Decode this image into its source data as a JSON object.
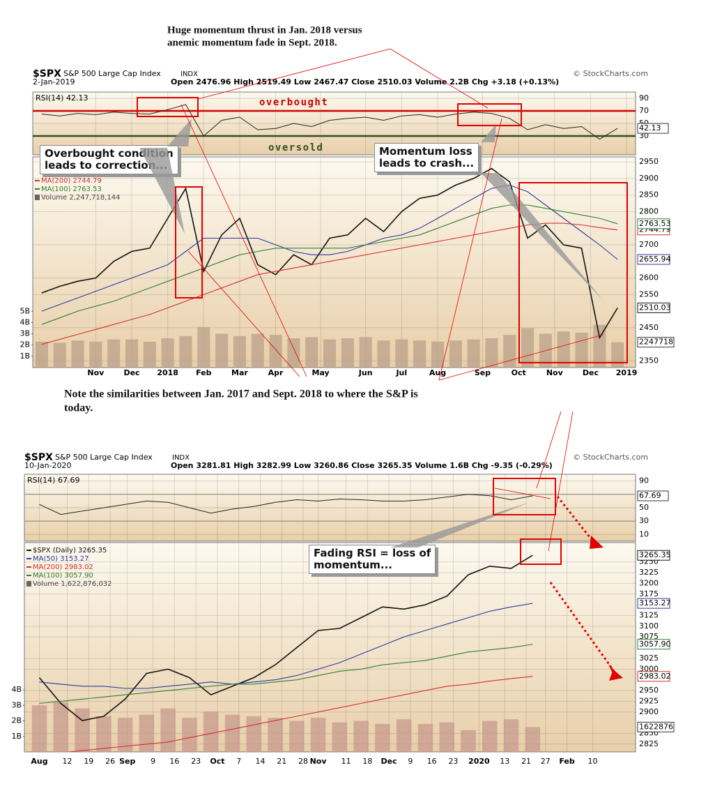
{
  "headline": [
    "Huge momentum thrust in Jan. 2018 versus",
    "anemic momentum fade in Sept. 2018."
  ],
  "note": [
    "Note the similarities between Jan. 2017 and Sept. 2018 to where the S&P is",
    "today."
  ],
  "zone_labels": [
    "overbought",
    "oversold"
  ],
  "callouts": [
    [
      "Overbought condition",
      "leads to correction..."
    ],
    [
      "Momentum loss",
      "leads to crash..."
    ],
    [
      "Fading RSI = loss of",
      "momentum..."
    ]
  ],
  "chart_data": [
    {
      "type": "stock",
      "symbol": "$SPX",
      "name": "S&P 500 Large Cap Index",
      "exchange": "INDX",
      "source": "© StockCharts.com",
      "date": "2-Jan-2019",
      "quote": "Open 2476.96 High 2519.49 Low 2467.47 Close 2510.03 Volume 2.2B Chg +3.18 (+0.13%)",
      "xlim": [
        -0.5,
        33
      ],
      "xticks": [
        {
          "value": 3,
          "label": "Nov"
        },
        {
          "value": 5,
          "label": "Dec"
        },
        {
          "value": 7,
          "label": "2018"
        },
        {
          "value": 9,
          "label": "Feb"
        },
        {
          "value": 11,
          "label": "Mar"
        },
        {
          "value": 13,
          "label": "Apr"
        },
        {
          "value": 15.5,
          "label": "May"
        },
        {
          "value": 18,
          "label": "Jun"
        },
        {
          "value": 20,
          "label": "Jul"
        },
        {
          "value": 22,
          "label": "Aug"
        },
        {
          "value": 24.5,
          "label": "Sep"
        },
        {
          "value": 26.5,
          "label": "Oct"
        },
        {
          "value": 28.5,
          "label": "Nov"
        },
        {
          "value": 30.5,
          "label": "Dec"
        },
        {
          "value": 32.5,
          "label": "2019"
        }
      ],
      "rsi": {
        "name": "RSI(14) 42.13",
        "color": "#222222",
        "ylim": [
          0,
          100
        ],
        "yticks": [
          30,
          50,
          70,
          90
        ],
        "levels": [
          70,
          30
        ],
        "last_label": "42.13",
        "values": [
          65,
          62,
          66,
          64,
          68,
          66,
          65,
          72,
          80,
          30,
          55,
          60,
          40,
          42,
          50,
          45,
          55,
          58,
          60,
          55,
          62,
          64,
          60,
          65,
          68,
          66,
          58,
          40,
          48,
          42,
          45,
          25,
          42.13
        ]
      },
      "ylim": [
        2330,
        2965
      ],
      "yticks": [
        2350,
        2450,
        2550,
        2600,
        2700,
        2800,
        2850,
        2900,
        2950
      ],
      "series": [
        {
          "color": "#111111",
          "last_label": "2510.03",
          "values": [
            2555,
            2575,
            2590,
            2600,
            2650,
            2680,
            2690,
            2780,
            2870,
            2620,
            2730,
            2780,
            2640,
            2610,
            2670,
            2640,
            2720,
            2730,
            2780,
            2740,
            2800,
            2840,
            2850,
            2880,
            2900,
            2930,
            2890,
            2720,
            2760,
            2700,
            2690,
            2420,
            2510.03
          ]
        },
        {
          "color": "#2b3a9e",
          "last_label": "2655.94",
          "values": [
            2500,
            2520,
            2540,
            2560,
            2580,
            2600,
            2620,
            2640,
            2680,
            2720,
            2720,
            2720,
            2720,
            2700,
            2680,
            2670,
            2670,
            2680,
            2700,
            2720,
            2730,
            2750,
            2780,
            2810,
            2840,
            2870,
            2880,
            2860,
            2820,
            2780,
            2740,
            2700,
            2655.94
          ]
        },
        {
          "name": "MA(200) 2744.79",
          "color": "#d32f2f",
          "last_label": "2744.79",
          "values": [
            2400,
            2415,
            2430,
            2445,
            2460,
            2475,
            2490,
            2510,
            2530,
            2550,
            2570,
            2590,
            2610,
            2620,
            2630,
            2640,
            2650,
            2660,
            2670,
            2680,
            2690,
            2700,
            2710,
            2720,
            2730,
            2740,
            2750,
            2760,
            2765,
            2765,
            2760,
            2752,
            2744.79
          ]
        },
        {
          "name": "MA(100) 2763.53",
          "color": "#2e7d32",
          "last_label": "2763.53",
          "values": [
            2460,
            2480,
            2500,
            2515,
            2530,
            2550,
            2570,
            2590,
            2610,
            2630,
            2650,
            2670,
            2680,
            2690,
            2690,
            2690,
            2690,
            2690,
            2700,
            2710,
            2720,
            2730,
            2750,
            2770,
            2790,
            2810,
            2820,
            2820,
            2810,
            2800,
            2790,
            2780,
            2763.53
          ]
        }
      ],
      "volume": {
        "name": "Volume 2,247,718,144",
        "color": "#b9a08a",
        "ylim": [
          0,
          18.7
        ],
        "last_label": "2247718",
        "yticks": [
          {
            "value": 1,
            "label": "1B"
          },
          {
            "value": 2,
            "label": "2B"
          },
          {
            "value": 3,
            "label": "3B"
          },
          {
            "value": 4,
            "label": "4B"
          },
          {
            "value": 5,
            "label": "5B"
          }
        ],
        "values": [
          2.3,
          2.2,
          2.4,
          2.3,
          2.5,
          2.5,
          2.3,
          2.6,
          2.8,
          3.6,
          3.0,
          2.8,
          3.0,
          2.9,
          2.6,
          2.7,
          2.5,
          2.6,
          2.7,
          2.4,
          2.5,
          2.4,
          2.3,
          2.4,
          2.5,
          2.6,
          2.9,
          3.5,
          3.0,
          3.2,
          3.1,
          3.8,
          2.25
        ]
      }
    },
    {
      "type": "stock",
      "symbol": "$SPX",
      "name": "S&P 500 Large Cap Index",
      "exchange": "INDX",
      "source": "© StockCharts.com",
      "date": "10-Jan-2020",
      "quote": "Open 3281.81 High 3282.99 Low 3260.86 Close 3265.35 Volume 1.6B Chg -9.35 (-0.29%)",
      "xlim": [
        -0.7,
        27.8
      ],
      "xticks": [
        {
          "value": 0,
          "label": "Aug"
        },
        {
          "value": 1.3,
          "label": "12"
        },
        {
          "value": 2.3,
          "label": "19"
        },
        {
          "value": 3.3,
          "label": "26"
        },
        {
          "value": 4.1,
          "label": "Sep"
        },
        {
          "value": 5.3,
          "label": "9"
        },
        {
          "value": 6.3,
          "label": "16"
        },
        {
          "value": 7.3,
          "label": "23"
        },
        {
          "value": 8.3,
          "label": "Oct"
        },
        {
          "value": 9.3,
          "label": "7"
        },
        {
          "value": 10.3,
          "label": "14"
        },
        {
          "value": 11.3,
          "label": "21"
        },
        {
          "value": 12.3,
          "label": "28"
        },
        {
          "value": 13,
          "label": "Nov"
        },
        {
          "value": 14.3,
          "label": "11"
        },
        {
          "value": 15.3,
          "label": "18"
        },
        {
          "value": 16.3,
          "label": "Dec"
        },
        {
          "value": 17.3,
          "label": "9"
        },
        {
          "value": 18.3,
          "label": "16"
        },
        {
          "value": 19.3,
          "label": "23"
        },
        {
          "value": 20.5,
          "label": "2020"
        },
        {
          "value": 21.7,
          "label": "13"
        },
        {
          "value": 22.7,
          "label": "21"
        },
        {
          "value": 23.6,
          "label": "27"
        },
        {
          "value": 24.6,
          "label": "Feb"
        },
        {
          "value": 25.8,
          "label": "10"
        }
      ],
      "rsi": {
        "name": "RSI(14) 67.69",
        "color": "#222222",
        "ylim": [
          0,
          100
        ],
        "yticks": [
          10,
          30,
          50,
          70,
          90
        ],
        "levels": [
          70,
          30
        ],
        "last_label": "67.69",
        "values": [
          55,
          40,
          45,
          50,
          55,
          60,
          58,
          50,
          42,
          48,
          52,
          58,
          62,
          60,
          63,
          62,
          60,
          60,
          62,
          66,
          70,
          68,
          62,
          67.69
        ]
      },
      "ylim": [
        2807,
        3295
      ],
      "yticks": [
        2825,
        2850,
        2900,
        2925,
        2950,
        3000,
        3025,
        3075,
        3100,
        3125,
        3175,
        3200,
        3225,
        3250
      ],
      "series": [
        {
          "name": "$SPX (Daily) 3265.35",
          "color": "#111111",
          "last_label": "3265.35",
          "values": [
            2980,
            2920,
            2880,
            2890,
            2930,
            2990,
            3000,
            2980,
            2940,
            2960,
            2980,
            3010,
            3050,
            3090,
            3095,
            3120,
            3145,
            3140,
            3150,
            3170,
            3220,
            3240,
            3235,
            3265.35
          ]
        },
        {
          "name": "MA(50) 3153.27",
          "color": "#2b3a9e",
          "last_label": "3153.27",
          "values": [
            2970,
            2965,
            2960,
            2960,
            2955,
            2955,
            2960,
            2965,
            2970,
            2965,
            2970,
            2975,
            2985,
            3000,
            3015,
            3035,
            3055,
            3075,
            3090,
            3105,
            3120,
            3135,
            3145,
            3153.27
          ]
        },
        {
          "name": "MA(200) 2983.02",
          "color": "#d32f2f",
          "last_label": "2983.02",
          "values": [
            2800,
            2805,
            2810,
            2815,
            2820,
            2825,
            2830,
            2840,
            2850,
            2860,
            2870,
            2880,
            2890,
            2900,
            2910,
            2920,
            2930,
            2940,
            2950,
            2960,
            2965,
            2972,
            2978,
            2983.02
          ]
        },
        {
          "name": "MA(100) 3057.90",
          "color": "#2e7d32",
          "last_label": "3057.90",
          "values": [
            2920,
            2925,
            2930,
            2935,
            2940,
            2945,
            2950,
            2955,
            2960,
            2965,
            2965,
            2970,
            2975,
            2985,
            2995,
            3000,
            3010,
            3015,
            3020,
            3030,
            3040,
            3045,
            3050,
            3057.9
          ]
        }
      ],
      "volume": {
        "name": "Volume 1,622,876,032",
        "color": "#c79a8e",
        "ylim": [
          0,
          13.5
        ],
        "last_label": "1622876",
        "yticks": [
          {
            "value": 1,
            "label": "1B"
          },
          {
            "value": 2,
            "label": "2B"
          },
          {
            "value": 3,
            "label": "3B"
          },
          {
            "value": 4,
            "label": "4B"
          }
        ],
        "values": [
          3.0,
          3.2,
          2.8,
          2.3,
          2.2,
          2.4,
          2.8,
          2.2,
          2.6,
          2.4,
          2.3,
          2.2,
          2.0,
          2.2,
          1.9,
          2.0,
          1.8,
          2.1,
          1.8,
          1.9,
          1.4,
          2.0,
          2.1,
          1.6
        ]
      }
    }
  ]
}
